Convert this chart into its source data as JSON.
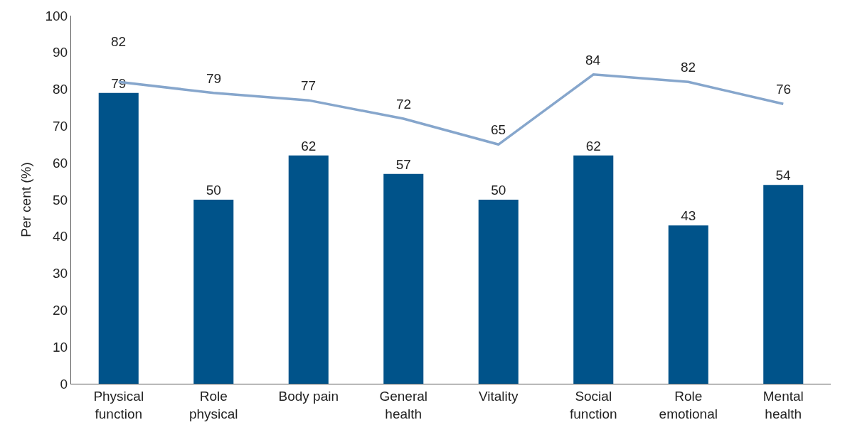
{
  "chart_data": {
    "type": "bar",
    "ylabel": "Per cent (%)",
    "categories": [
      "Physical\nfunction",
      "Role\nphysical",
      "Body pain",
      "General\nhealth",
      "Vitality",
      "Social\nfunction",
      "Role\nemotional",
      "Mental\nhealth"
    ],
    "series": [
      {
        "color": "#00538a",
        "values": [
          79,
          50,
          62,
          57,
          50,
          62,
          43,
          54
        ]
      },
      {
        "type": "line",
        "color": "#86a6cc",
        "values": [
          82,
          79,
          77,
          72,
          65,
          84,
          82,
          76
        ]
      }
    ],
    "ylim": [
      0,
      100
    ],
    "yticks": [
      0,
      10,
      20,
      30,
      40,
      50,
      60,
      70,
      80,
      90,
      100
    ],
    "data_labels": true,
    "grid": false,
    "line_style": "solid"
  }
}
